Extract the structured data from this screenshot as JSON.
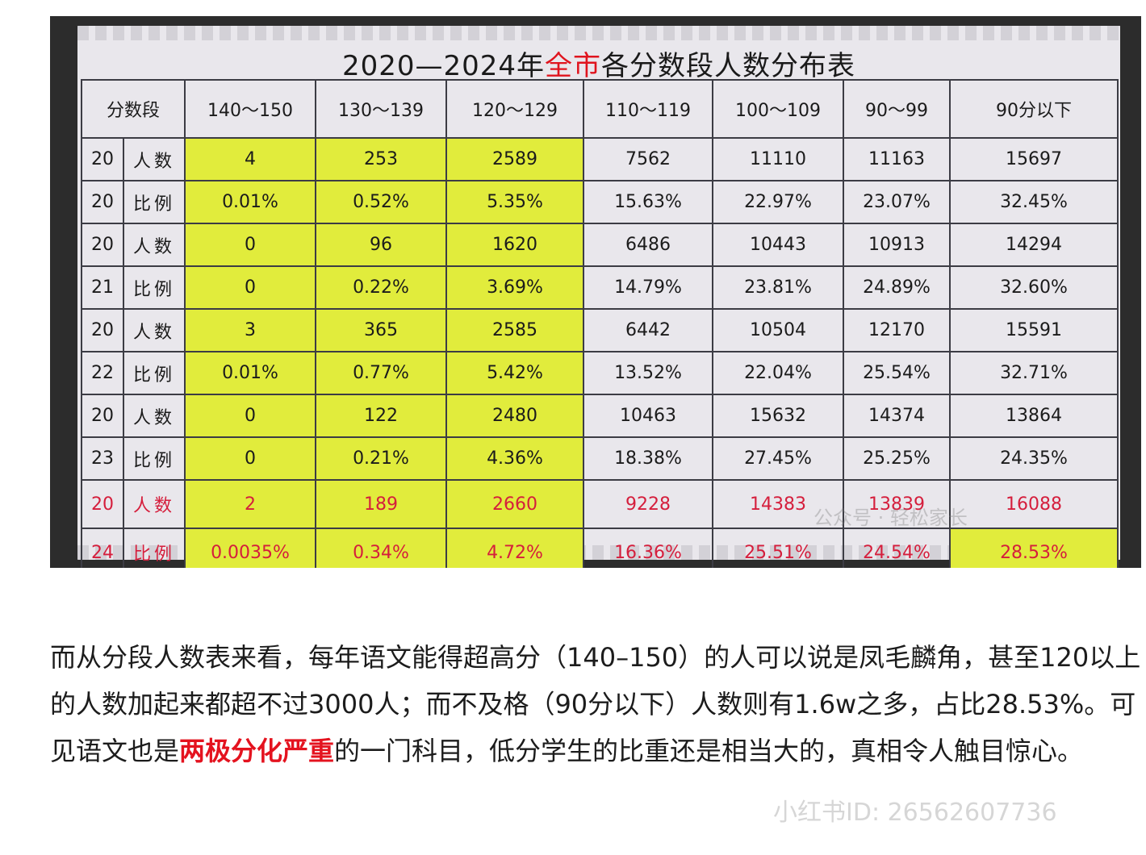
{
  "table": {
    "title_pre": "2020—2024年",
    "title_highlight": "全市",
    "title_post": "各分数段人数分布表",
    "header": [
      "分数段",
      "140～150",
      "130～139",
      "120～129",
      "110～119",
      "100～109",
      "90～99",
      "90分以下"
    ],
    "row_labels": {
      "count": "人数",
      "ratio": "比例"
    },
    "years": [
      {
        "top": "20",
        "bottom": "20",
        "counts": [
          "4",
          "253",
          "2589",
          "7562",
          "11110",
          "11163",
          "15697"
        ],
        "ratios": [
          "0.01%",
          "0.52%",
          "5.35%",
          "15.63%",
          "22.97%",
          "23.07%",
          "32.45%"
        ]
      },
      {
        "top": "20",
        "bottom": "21",
        "counts": [
          "0",
          "96",
          "1620",
          "6486",
          "10443",
          "10913",
          "14294"
        ],
        "ratios": [
          "0",
          "0.22%",
          "3.69%",
          "14.79%",
          "23.81%",
          "24.89%",
          "32.60%"
        ]
      },
      {
        "top": "20",
        "bottom": "22",
        "counts": [
          "3",
          "365",
          "2585",
          "6442",
          "10504",
          "12170",
          "15591"
        ],
        "ratios": [
          "0.01%",
          "0.77%",
          "5.42%",
          "13.52%",
          "22.04%",
          "25.54%",
          "32.71%"
        ]
      },
      {
        "top": "20",
        "bottom": "23",
        "counts": [
          "0",
          "122",
          "2480",
          "10463",
          "15632",
          "14374",
          "13864"
        ],
        "ratios": [
          "0",
          "0.21%",
          "4.36%",
          "18.38%",
          "27.45%",
          "25.25%",
          "24.35%"
        ]
      },
      {
        "top": "20",
        "bottom": "24",
        "counts": [
          "2",
          "189",
          "2660",
          "9228",
          "14383",
          "13839",
          "16088"
        ],
        "ratios": [
          "0.0035%",
          "0.34%",
          "4.72%",
          "16.36%",
          "25.51%",
          "24.54%",
          "28.53%"
        ]
      }
    ],
    "colors": {
      "highlight": "#e1ec3c",
      "red_text": "#d51e3c",
      "title_highlight": "#e0141e"
    }
  },
  "watermarks": {
    "wechat": "公众号 · 轻松家长",
    "xiaohongshu": "小红书ID: 26562607736"
  },
  "article": {
    "p1": "而从分段人数表来看，每年语文能得超高分（140–150）的人可以说是凤毛麟角，甚至120以上的人数加起来都超不过3000人；而不及格（90分以下）人数则有1.6w之多，占比28.53%。可见语文也是",
    "p1_strong": "两极分化严重",
    "p1_end": "的一门科目，低分学生的比重还是相当大的，真相令人触目惊心。"
  }
}
